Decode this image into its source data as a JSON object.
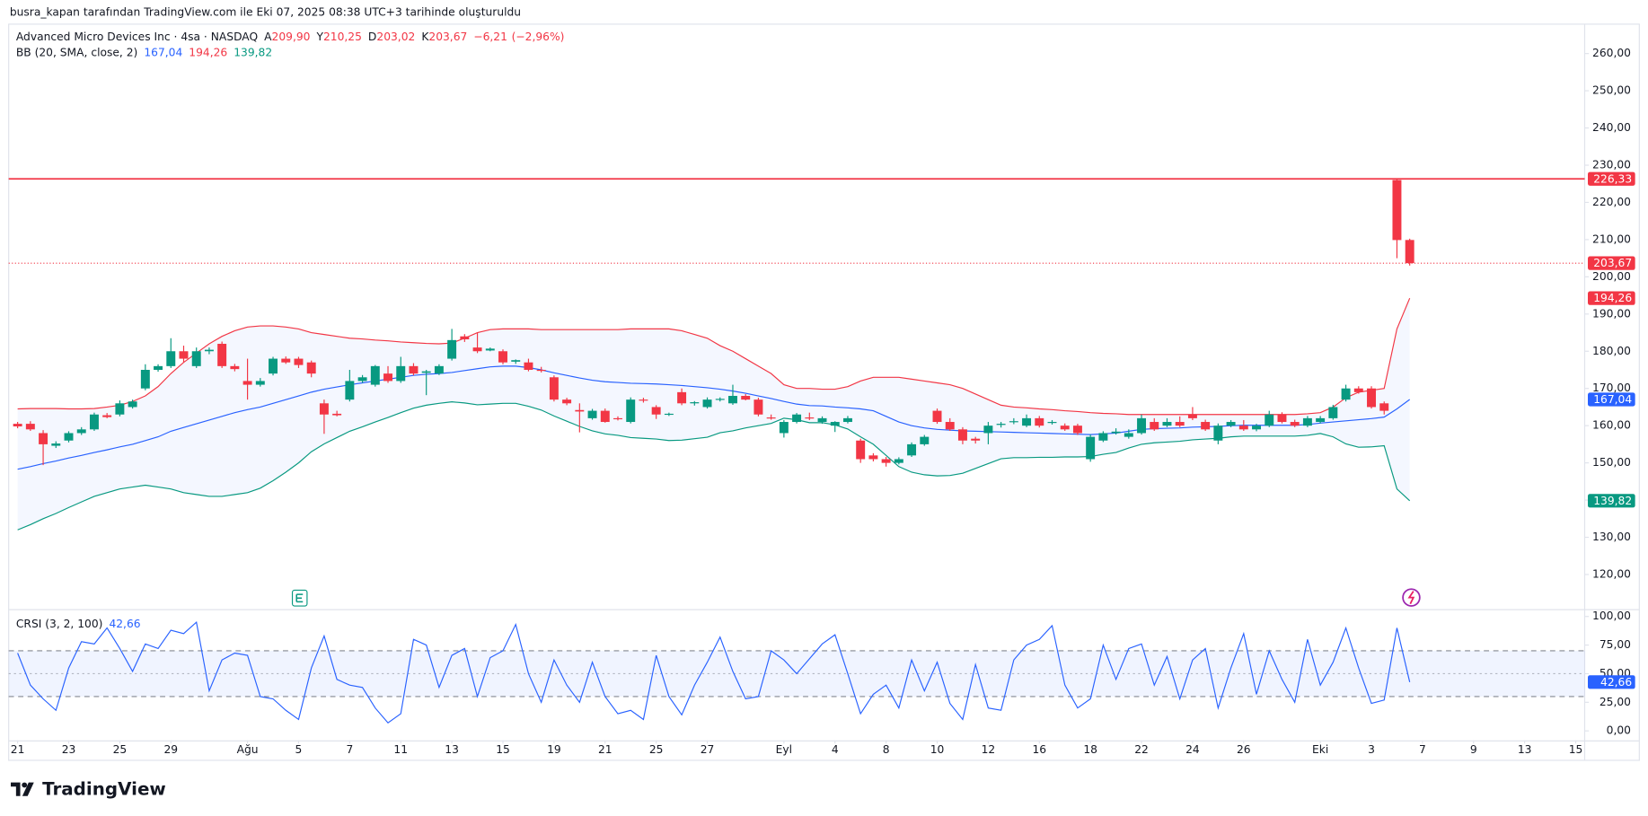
{
  "header": {
    "attribution": "busra_kapan tarafından TradingView.com ile Eki 07, 2025 08:38 UTC+3 tarihinde oluşturuldu"
  },
  "footer": {
    "brand": "TradingView"
  },
  "chart_data": [
    {
      "type": "candlestick",
      "title": "Advanced Micro Devices Inc · 4sa · NASDAQ",
      "ohlc_legend": [
        {
          "prefix": "A",
          "value": 209.9,
          "label": "209,90"
        },
        {
          "prefix": "Y",
          "value": 210.25,
          "label": "210,25"
        },
        {
          "prefix": "D",
          "value": 203.02,
          "label": "203,02"
        },
        {
          "prefix": "K",
          "value": 203.67,
          "label": "203,67"
        }
      ],
      "change": {
        "value": -6.21,
        "label": "−6,21"
      },
      "change_percent": {
        "value": -2.96,
        "label": "(−2,96%)"
      },
      "up_color": "#089981",
      "down_color": "#f23645",
      "open": [
        160.5,
        160.5,
        158,
        154.6,
        156,
        158,
        159,
        162.8,
        163,
        165,
        170,
        175,
        176,
        180,
        176,
        180,
        182,
        176,
        172,
        171,
        174,
        178,
        178,
        177,
        166,
        163.2,
        167,
        172,
        171,
        174,
        172,
        176,
        174.2,
        174,
        178,
        184,
        181,
        180.2,
        180,
        177.2,
        177,
        175,
        173,
        167,
        164.2,
        162,
        164,
        162,
        161,
        167,
        165,
        163,
        169,
        166,
        165,
        167,
        166,
        168,
        167,
        162.2,
        158,
        161,
        162.2,
        161,
        160,
        161,
        156,
        152,
        151,
        150,
        152,
        155,
        164,
        161,
        159,
        156.5,
        158,
        160.2,
        161,
        160,
        162,
        160.8,
        160,
        160,
        151,
        156,
        158,
        157,
        158,
        161,
        160,
        161,
        163,
        161,
        156,
        160,
        160,
        159,
        160,
        163,
        161,
        160,
        161,
        162,
        167,
        170,
        170,
        166,
        226,
        209.9
      ],
      "high": [
        161,
        161.2,
        158.8,
        155.8,
        158.5,
        159.6,
        163.5,
        163.4,
        166.8,
        167,
        176.5,
        176.5,
        183.5,
        181.5,
        181,
        181,
        182.6,
        176.6,
        178,
        172.8,
        178.5,
        178.6,
        178.5,
        177.5,
        167,
        164,
        175,
        173.6,
        176.3,
        176,
        178.5,
        176.8,
        175,
        176.5,
        186,
        184.6,
        185,
        181,
        180.5,
        177.8,
        178,
        175.8,
        173.5,
        167.5,
        166,
        164.5,
        164.6,
        162.5,
        167.6,
        167.5,
        165.5,
        163.5,
        170,
        166.6,
        167.6,
        167.6,
        171,
        168.5,
        167.5,
        163,
        161.5,
        163.4,
        163.5,
        162.5,
        161.2,
        162.6,
        156.5,
        152.6,
        151.6,
        151.5,
        155.5,
        157.5,
        164.6,
        162,
        159.6,
        157,
        161,
        161,
        162,
        163,
        162.6,
        161.5,
        160.6,
        160.5,
        157.6,
        158.5,
        159.3,
        159,
        163,
        162,
        162,
        162.5,
        165,
        161.6,
        160.6,
        161.5,
        161.5,
        160.5,
        164,
        163.6,
        161.6,
        162.6,
        162.6,
        165.6,
        171,
        170.6,
        170.6,
        166.5,
        226.33,
        210.25
      ],
      "low": [
        159.3,
        158.6,
        149.4,
        154,
        155.5,
        157.5,
        158.6,
        162,
        162.5,
        164.6,
        169.5,
        174.5,
        175.5,
        177,
        175.5,
        179.2,
        175.5,
        174.6,
        167,
        170.5,
        173.5,
        176.6,
        175.5,
        173,
        157.8,
        162.5,
        166.5,
        171.5,
        170.5,
        171.5,
        171.5,
        173.5,
        168.2,
        173.6,
        177.5,
        182.5,
        179.5,
        180,
        176.5,
        176.6,
        174.6,
        174.3,
        166.5,
        165.5,
        158.2,
        161.6,
        160.8,
        161.4,
        160.6,
        166.2,
        161.8,
        162.6,
        165.5,
        165.4,
        164.6,
        166.5,
        165.6,
        166.8,
        162.5,
        161.6,
        156.8,
        160.6,
        161.5,
        160.5,
        158.3,
        160.6,
        150,
        150.4,
        149,
        149.6,
        151.6,
        154.6,
        160.5,
        158.6,
        155,
        155.2,
        155,
        159.5,
        160.4,
        159.6,
        159.5,
        160.3,
        158.6,
        157.5,
        150.3,
        155.6,
        157.6,
        156.5,
        157.6,
        158.6,
        159.6,
        159.6,
        161.5,
        158.6,
        155,
        159.6,
        158.6,
        158.5,
        159.6,
        160.6,
        159.6,
        159.6,
        160.6,
        161.6,
        166.5,
        168.6,
        164.6,
        163,
        205,
        203.02
      ],
      "close": [
        159.8,
        159,
        155,
        155.2,
        158,
        159,
        163,
        162.3,
        166,
        166.5,
        175,
        176,
        180,
        178,
        180,
        180.4,
        176,
        175.2,
        171,
        172,
        178,
        177,
        176.3,
        174,
        163,
        162.8,
        172,
        173,
        176,
        172,
        176,
        174,
        174.6,
        176,
        183,
        183.2,
        180,
        180.7,
        177,
        177.6,
        175,
        174.8,
        167,
        166,
        163.8,
        164,
        161,
        161.8,
        167,
        166.8,
        163,
        163.2,
        166,
        166.3,
        167,
        167.2,
        168,
        167,
        163,
        162,
        161,
        163,
        162,
        162,
        161,
        162,
        151,
        151,
        150,
        151,
        155,
        157,
        161,
        159,
        156,
        156,
        160,
        160.5,
        161.2,
        162,
        160,
        161,
        159,
        158,
        157,
        158,
        158.4,
        158,
        162,
        159,
        161,
        160,
        162,
        159,
        160,
        161,
        159,
        160,
        163,
        161,
        160,
        162,
        162,
        165,
        170,
        169,
        165,
        164,
        209.88,
        203.67
      ],
      "bollinger": {
        "name": "BB (20, SMA, close, 2)",
        "fill": "#2962ff",
        "basis": {
          "color": "#2962ff",
          "last": {
            "value": 167.04,
            "label": "167,04"
          },
          "values": [
            148.3,
            149,
            149.8,
            150.5,
            151.3,
            152,
            152.8,
            153.5,
            154.3,
            155,
            156,
            157,
            158.5,
            159.5,
            160.5,
            161.5,
            162.5,
            163.5,
            164.3,
            165,
            166,
            167,
            168,
            169,
            169.8,
            170.4,
            171,
            171.5,
            172,
            172.5,
            173,
            173.5,
            173.8,
            174,
            174.3,
            174.8,
            175.3,
            175.8,
            176,
            176,
            175.6,
            175,
            174.2,
            173.5,
            172.8,
            172.2,
            171.8,
            171.6,
            171.4,
            171.3,
            171.2,
            171,
            170.8,
            170.5,
            170.2,
            169.8,
            169.3,
            168.7,
            168,
            167.3,
            166.5,
            165.8,
            165.4,
            165.3,
            165,
            164.8,
            164.5,
            164,
            162.5,
            161,
            160,
            159.4,
            159,
            158.8,
            158.6,
            158.5,
            158.4,
            158.3,
            158.2,
            158.1,
            158,
            157.9,
            157.8,
            157.7,
            157.6,
            157.8,
            158,
            158.5,
            159,
            159.2,
            159.3,
            159.4,
            159.6,
            159.7,
            159.8,
            160,
            160.1,
            160.1,
            160.1,
            160.1,
            160.1,
            160.3,
            160.7,
            161,
            161.3,
            161.6,
            161.9,
            162.3,
            164.5,
            167.04
          ]
        },
        "upper": {
          "color": "#f23645",
          "last": {
            "value": 194.26,
            "label": "194,26"
          },
          "values": [
            164.5,
            164.6,
            164.6,
            164.6,
            164.5,
            164.5,
            164.6,
            165,
            165.5,
            166.5,
            168,
            170.5,
            174,
            177,
            179.5,
            182,
            184,
            185.5,
            186.5,
            186.8,
            186.8,
            186.5,
            186,
            185,
            184.5,
            184,
            183.5,
            183.3,
            183,
            182.8,
            182.5,
            182.3,
            182.1,
            182,
            182.2,
            183.5,
            185,
            185.8,
            186,
            186,
            186,
            185.8,
            185.8,
            185.8,
            185.8,
            185.8,
            185.8,
            185.8,
            186,
            186,
            186,
            186,
            185.5,
            184.5,
            183.5,
            181.5,
            180,
            178,
            176,
            174,
            171,
            170,
            170,
            169.8,
            169.8,
            170.5,
            172,
            173,
            173,
            173,
            172.5,
            172,
            171.5,
            171,
            170,
            168.5,
            167,
            165.5,
            165,
            164.8,
            164.5,
            164.3,
            164,
            163.8,
            163.5,
            163.3,
            163.2,
            163,
            163,
            163,
            163,
            163,
            163,
            163,
            163,
            163,
            163,
            163,
            163,
            163,
            163,
            163.2,
            163.5,
            165,
            167.5,
            169,
            169.5,
            170,
            186,
            194.26
          ]
        },
        "lower": {
          "color": "#089981",
          "last": {
            "value": 139.82,
            "label": "139,82"
          },
          "values": [
            132,
            133.4,
            135,
            136.4,
            138,
            139.5,
            141,
            142,
            143,
            143.5,
            144,
            143.5,
            143,
            142,
            141.5,
            141,
            141,
            141.5,
            142,
            143.2,
            145.2,
            147.5,
            150,
            153,
            155.1,
            156.8,
            158.5,
            159.7,
            161,
            162.2,
            163.5,
            164.7,
            165.5,
            166,
            166.4,
            166.1,
            165.6,
            165.8,
            166,
            166,
            165.2,
            164.2,
            162.6,
            161.2,
            159.8,
            158.6,
            157.8,
            157.4,
            156.8,
            156.6,
            156.4,
            156,
            156.1,
            156.5,
            156.9,
            158.1,
            158.6,
            159.4,
            160,
            160.6,
            162,
            161.6,
            160.8,
            160.8,
            160.2,
            159.1,
            157,
            155,
            152,
            149,
            147.5,
            146.8,
            146.5,
            146.6,
            147.2,
            148.5,
            149.8,
            151.1,
            151.4,
            151.4,
            151.5,
            151.5,
            151.6,
            151.6,
            151.7,
            152.3,
            152.8,
            154,
            155,
            155.4,
            155.6,
            155.8,
            156.2,
            156.4,
            156.6,
            157,
            157.2,
            157.2,
            157.2,
            157.2,
            157.2,
            157.4,
            157.9,
            157,
            155.1,
            154.2,
            154.3,
            154.6,
            143,
            139.82
          ]
        }
      },
      "horizontal_line": {
        "value": 226.33,
        "label": "226,33",
        "color": "#f23645"
      },
      "last_price": {
        "value": 203.67,
        "label": "203,67"
      },
      "xlim": [
        -0.7,
        122.7
      ],
      "ylim": [
        110.7,
        267.9
      ],
      "grid": false,
      "yticks": [
        {
          "value": 120,
          "label": "120,00"
        },
        {
          "value": 130,
          "label": "130,00"
        },
        {
          "value": 140,
          "label": "140,00"
        },
        {
          "value": 150,
          "label": "150,00"
        },
        {
          "value": 160,
          "label": "160,00"
        },
        {
          "value": 170,
          "label": "170,00"
        },
        {
          "value": 180,
          "label": "180,00"
        },
        {
          "value": 190,
          "label": "190,00"
        },
        {
          "value": 200,
          "label": "200,00"
        },
        {
          "value": 210,
          "label": "210,00"
        },
        {
          "value": 220,
          "label": "220,00"
        },
        {
          "value": 230,
          "label": "230,00"
        },
        {
          "value": 240,
          "label": "240,00"
        },
        {
          "value": 250,
          "label": "250,00"
        },
        {
          "value": 260,
          "label": "260,00"
        }
      ]
    },
    {
      "type": "line",
      "title": "CRSI (3, 2, 100)",
      "color": "#2962ff",
      "band_fill": "#2962ff",
      "levels": [
        70,
        50,
        30
      ],
      "last": {
        "value": 42.66,
        "label": "42,66"
      },
      "values": [
        68,
        40,
        28,
        18,
        55,
        78,
        76,
        90,
        72,
        52,
        76,
        72,
        88,
        85,
        95,
        35,
        62,
        68,
        66,
        30,
        28,
        18,
        10,
        55,
        83,
        45,
        40,
        38,
        20,
        7,
        15,
        80,
        75,
        38,
        66,
        72,
        30,
        64,
        70,
        93,
        50,
        25,
        62,
        40,
        25,
        60,
        30,
        15,
        18,
        10,
        66,
        30,
        14,
        40,
        60,
        82,
        52,
        28,
        30,
        70,
        62,
        50,
        63,
        76,
        84,
        50,
        15,
        32,
        40,
        20,
        62,
        35,
        60,
        24,
        10,
        58,
        20,
        18,
        62,
        75,
        80,
        92,
        40,
        20,
        28,
        75,
        45,
        72,
        76,
        40,
        65,
        28,
        62,
        72,
        20,
        55,
        85,
        32,
        70,
        45,
        25,
        80,
        40,
        60,
        90,
        55,
        24,
        27,
        90,
        42.66
      ],
      "xlim": [
        -0.7,
        122.7
      ],
      "ylim": [
        -8.3,
        104.6
      ],
      "grid": false,
      "yticks": [
        {
          "value": 0,
          "label": "0,00"
        },
        {
          "value": 25,
          "label": "25,00"
        },
        {
          "value": 50,
          "label": "50,00"
        },
        {
          "value": 75,
          "label": "75,00"
        },
        {
          "value": 100,
          "label": "100,00"
        }
      ],
      "xticks": [
        {
          "value": 0,
          "label": "21"
        },
        {
          "value": 4,
          "label": "23"
        },
        {
          "value": 8,
          "label": "25"
        },
        {
          "value": 12,
          "label": "29"
        },
        {
          "value": 18,
          "label": "Ağu"
        },
        {
          "value": 22,
          "label": "5"
        },
        {
          "value": 26,
          "label": "7"
        },
        {
          "value": 30,
          "label": "11"
        },
        {
          "value": 34,
          "label": "13"
        },
        {
          "value": 38,
          "label": "15"
        },
        {
          "value": 42,
          "label": "19"
        },
        {
          "value": 46,
          "label": "21"
        },
        {
          "value": 50,
          "label": "25"
        },
        {
          "value": 54,
          "label": "27"
        },
        {
          "value": 60,
          "label": "Eyl"
        },
        {
          "value": 64,
          "label": "4"
        },
        {
          "value": 68,
          "label": "8"
        },
        {
          "value": 72,
          "label": "10"
        },
        {
          "value": 76,
          "label": "12"
        },
        {
          "value": 80,
          "label": "16"
        },
        {
          "value": 84,
          "label": "18"
        },
        {
          "value": 88,
          "label": "22"
        },
        {
          "value": 92,
          "label": "24"
        },
        {
          "value": 96,
          "label": "26"
        },
        {
          "value": 102,
          "label": "Eki"
        },
        {
          "value": 106,
          "label": "3"
        },
        {
          "value": 110,
          "label": "7"
        },
        {
          "value": 114,
          "label": "9"
        },
        {
          "value": 118,
          "label": "13"
        },
        {
          "value": 122,
          "label": "15"
        }
      ]
    }
  ]
}
